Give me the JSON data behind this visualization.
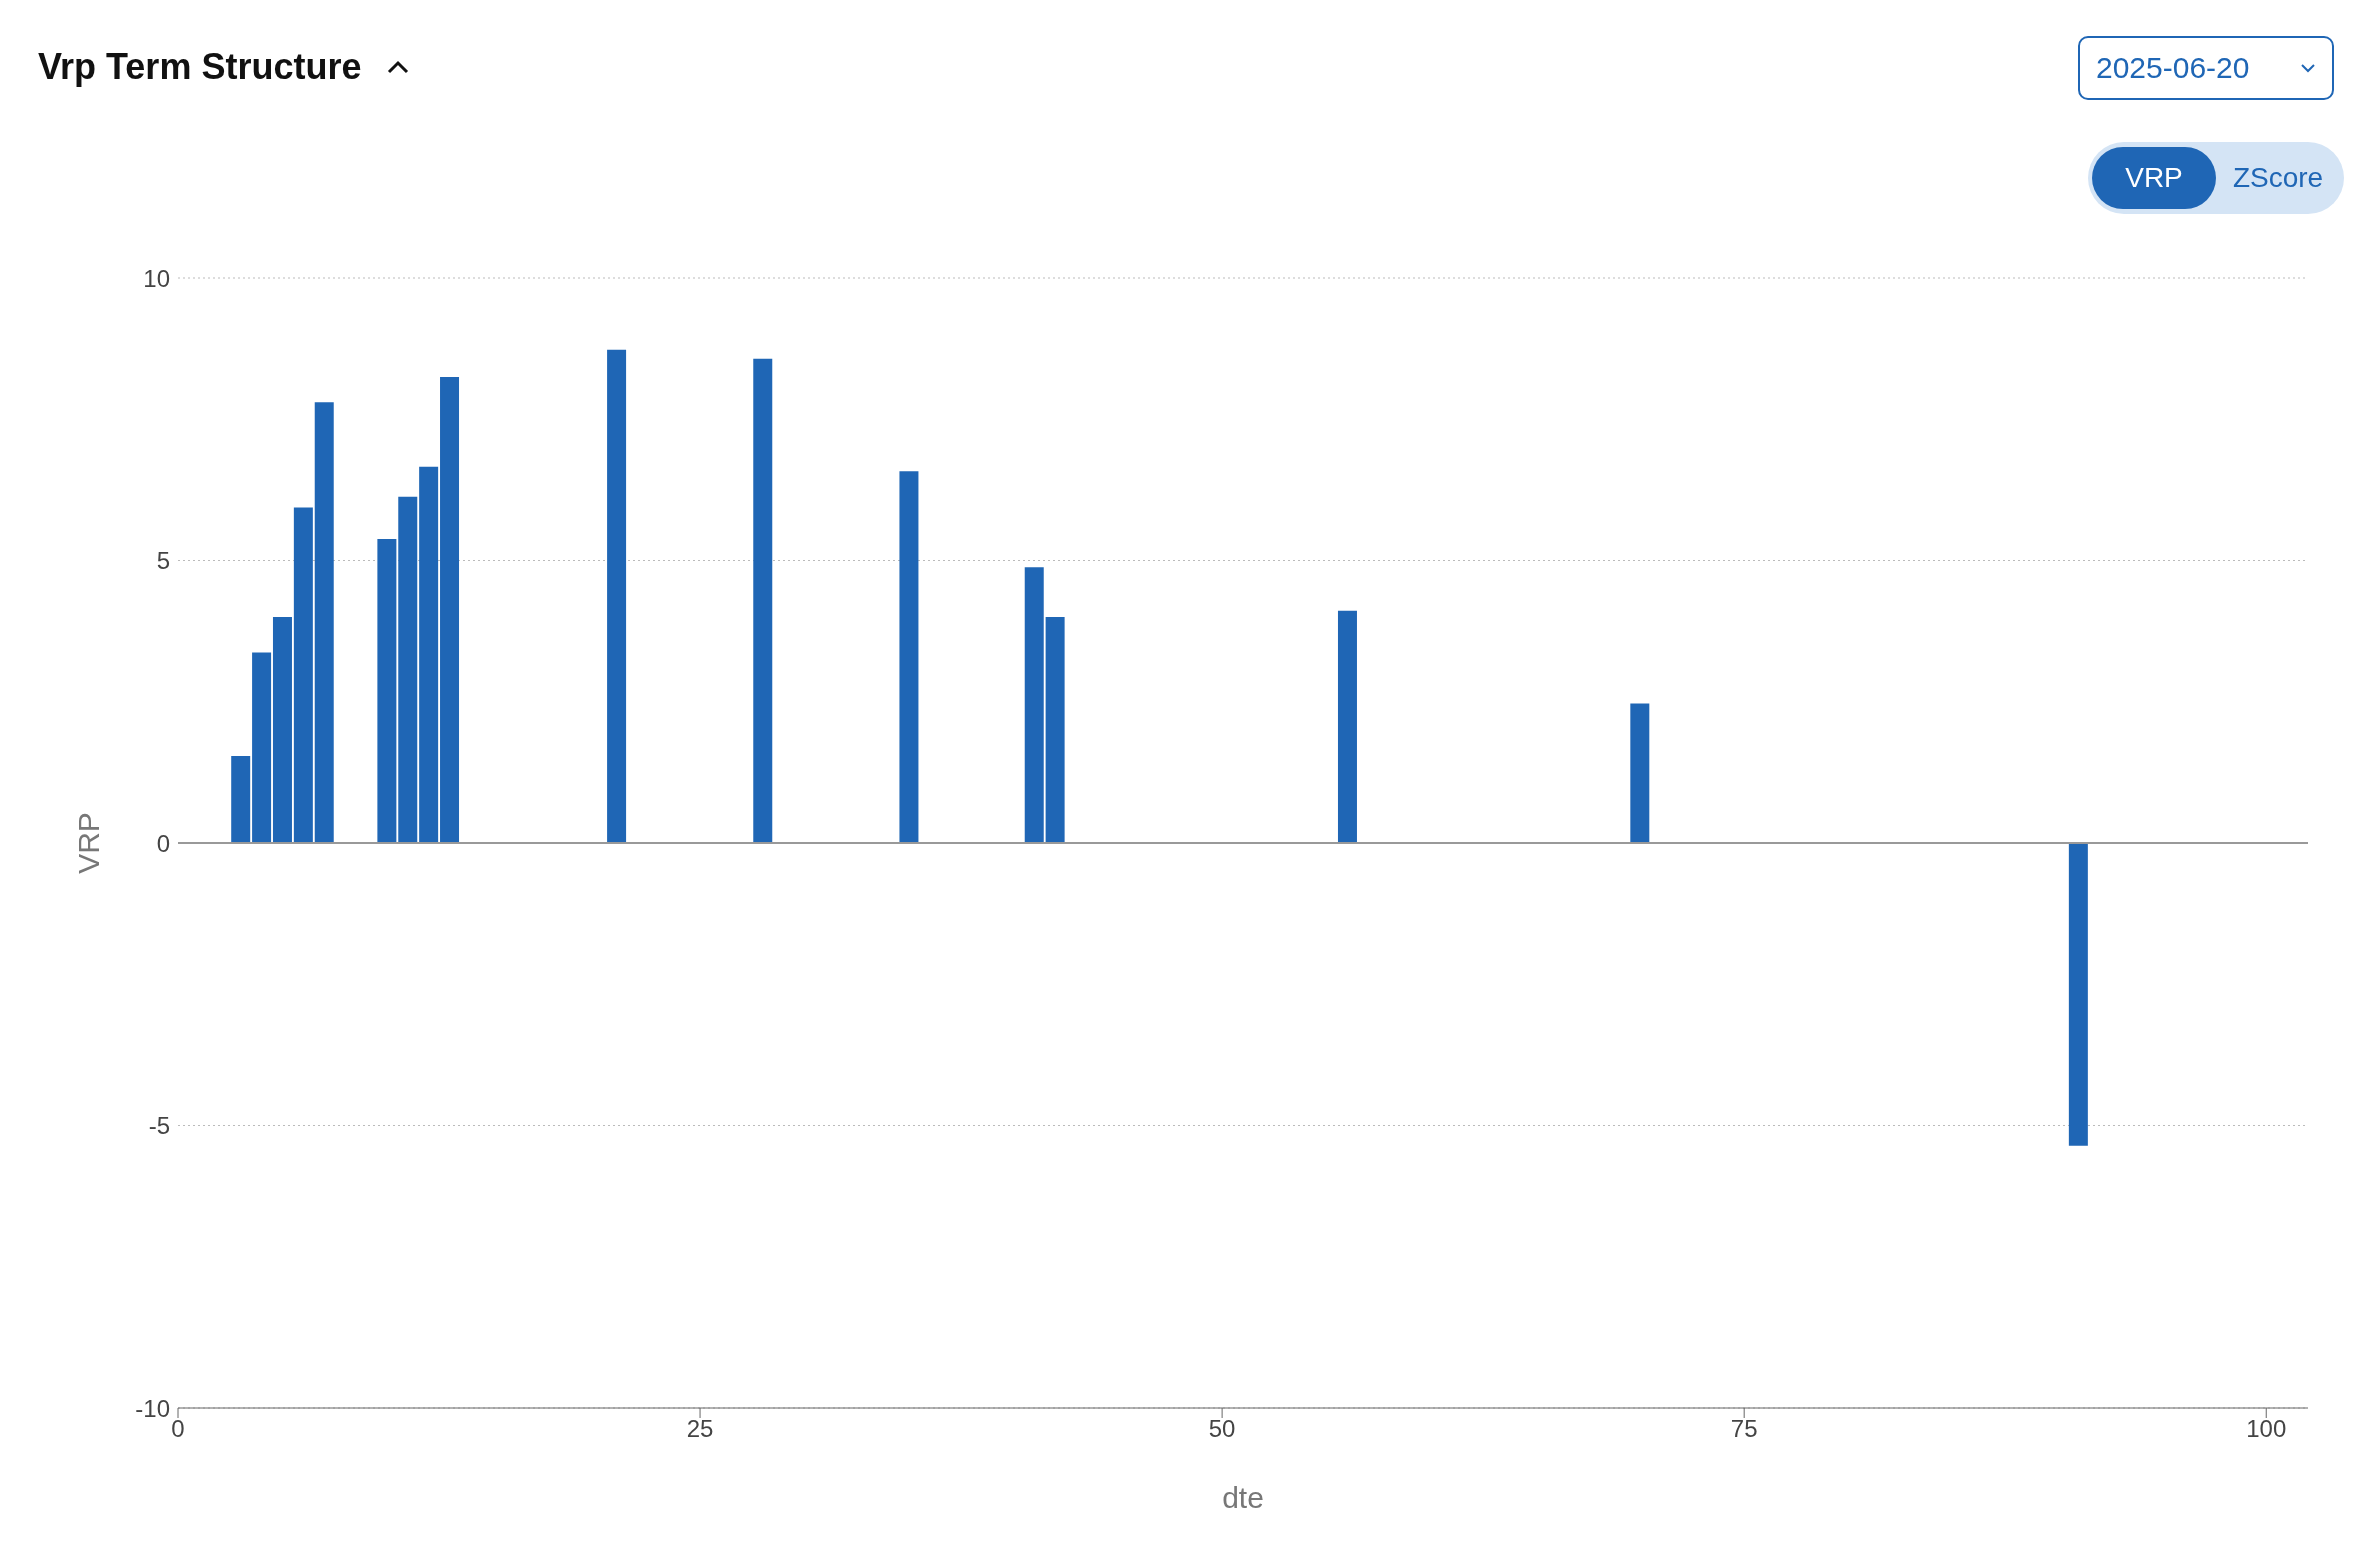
{
  "chart_data": {
    "type": "bar",
    "title": "Vrp Term Structure",
    "xlabel": "dte",
    "ylabel": "VRP",
    "x": [
      3,
      4,
      5,
      6,
      7,
      10,
      11,
      12,
      13,
      21,
      28,
      35,
      41,
      42,
      56,
      70,
      91
    ],
    "values": [
      1.54,
      3.37,
      4.0,
      5.94,
      7.8,
      5.38,
      6.13,
      6.66,
      8.25,
      8.73,
      8.57,
      6.58,
      4.88,
      4.0,
      4.11,
      2.47,
      -5.36
    ],
    "color": "#1f66b5",
    "xlim": [
      0,
      102
    ],
    "xticks": [
      0,
      25,
      50,
      75,
      100
    ],
    "ylim": [
      -10,
      10
    ],
    "yticks": [
      -10,
      -5,
      0,
      5,
      10
    ],
    "grid": "y",
    "ref_lines": [
      {
        "axis": "y",
        "value": 0,
        "color": "#999999"
      }
    ],
    "annotations": [
      "2025-06-20",
      "VRP",
      "ZScore"
    ]
  }
}
